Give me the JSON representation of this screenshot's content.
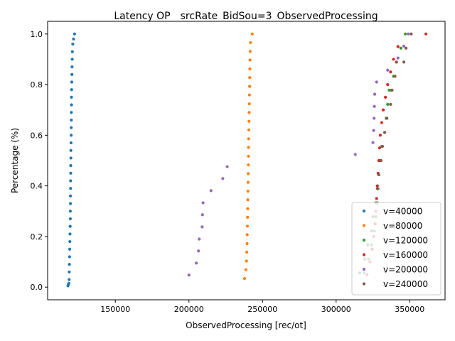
{
  "chart_data": {
    "type": "scatter",
    "title": "Latency OP__srcRate_BidSou=3_ObservedProcessing",
    "xlabel": "ObservedProcessing [rec/ot]",
    "ylabel": "Percentage (%)",
    "xlim": [
      104000,
      374000
    ],
    "ylim": [
      -0.05,
      1.05
    ],
    "xticks": [
      150000,
      200000,
      250000,
      300000,
      350000
    ],
    "xtick_labels": [
      "150000",
      "200000",
      "250000",
      "300000",
      "350000"
    ],
    "yticks": [
      0.0,
      0.2,
      0.4,
      0.6,
      0.8,
      1.0
    ],
    "ytick_labels": [
      "0.0",
      "0.2",
      "0.4",
      "0.6",
      "0.8",
      "1.0"
    ],
    "legend_position": "lower right",
    "grid": false,
    "series": [
      {
        "name": "v=40000",
        "color": "#1f77b4",
        "points": [
          [
            117800,
            0.005
          ],
          [
            118100,
            0.01
          ],
          [
            118400,
            0.015
          ],
          [
            118600,
            0.03
          ],
          [
            118700,
            0.06
          ],
          [
            118800,
            0.09
          ],
          [
            118900,
            0.12
          ],
          [
            119000,
            0.15
          ],
          [
            119100,
            0.18
          ],
          [
            119200,
            0.21
          ],
          [
            119300,
            0.24
          ],
          [
            119400,
            0.27
          ],
          [
            119400,
            0.3
          ],
          [
            119500,
            0.33
          ],
          [
            119500,
            0.36
          ],
          [
            119600,
            0.39
          ],
          [
            119600,
            0.42
          ],
          [
            119700,
            0.45
          ],
          [
            119700,
            0.48
          ],
          [
            119800,
            0.51
          ],
          [
            119800,
            0.54
          ],
          [
            119900,
            0.57
          ],
          [
            120000,
            0.6
          ],
          [
            120000,
            0.63
          ],
          [
            120100,
            0.66
          ],
          [
            120100,
            0.69
          ],
          [
            120200,
            0.72
          ],
          [
            120200,
            0.75
          ],
          [
            120300,
            0.78
          ],
          [
            120400,
            0.81
          ],
          [
            120500,
            0.84
          ],
          [
            120600,
            0.87
          ],
          [
            120700,
            0.9
          ],
          [
            120800,
            0.93
          ],
          [
            121100,
            0.96
          ],
          [
            121600,
            0.98
          ],
          [
            122300,
            1.0
          ]
        ]
      },
      {
        "name": "v=80000",
        "color": "#ff7f0e",
        "points": [
          [
            237800,
            0.034
          ],
          [
            238700,
            0.069
          ],
          [
            239100,
            0.103
          ],
          [
            239300,
            0.138
          ],
          [
            239500,
            0.172
          ],
          [
            239600,
            0.207
          ],
          [
            239700,
            0.241
          ],
          [
            239800,
            0.276
          ],
          [
            239900,
            0.31
          ],
          [
            240000,
            0.345
          ],
          [
            240100,
            0.379
          ],
          [
            240200,
            0.414
          ],
          [
            240300,
            0.448
          ],
          [
            240400,
            0.483
          ],
          [
            240500,
            0.517
          ],
          [
            240500,
            0.552
          ],
          [
            240600,
            0.586
          ],
          [
            240700,
            0.621
          ],
          [
            240800,
            0.655
          ],
          [
            240900,
            0.69
          ],
          [
            241000,
            0.724
          ],
          [
            241100,
            0.759
          ],
          [
            241200,
            0.793
          ],
          [
            241300,
            0.828
          ],
          [
            241400,
            0.862
          ],
          [
            241500,
            0.897
          ],
          [
            241600,
            0.931
          ],
          [
            241800,
            0.966
          ],
          [
            243000,
            1.0
          ]
        ]
      },
      {
        "name": "v=120000",
        "color": "#2ca02c",
        "points": [
          [
            319000,
            0.056
          ],
          [
            322000,
            0.111
          ],
          [
            324000,
            0.167
          ],
          [
            326000,
            0.222
          ],
          [
            327000,
            0.278
          ],
          [
            328000,
            0.333
          ],
          [
            328500,
            0.389
          ],
          [
            329000,
            0.444
          ],
          [
            330000,
            0.5
          ],
          [
            331000,
            0.556
          ],
          [
            333000,
            0.611
          ],
          [
            334000,
            0.667
          ],
          [
            335000,
            0.722
          ],
          [
            336000,
            0.778
          ],
          [
            337500,
            0.778
          ],
          [
            339000,
            0.833
          ],
          [
            341000,
            0.889
          ],
          [
            344000,
            0.944
          ],
          [
            347000,
            1.0
          ]
        ]
      },
      {
        "name": "v=160000",
        "color": "#d62728",
        "points": [
          [
            321000,
            0.05
          ],
          [
            323000,
            0.1
          ],
          [
            324500,
            0.15
          ],
          [
            325500,
            0.2
          ],
          [
            326500,
            0.25
          ],
          [
            327000,
            0.3
          ],
          [
            327500,
            0.35
          ],
          [
            328000,
            0.4
          ],
          [
            328500,
            0.45
          ],
          [
            329000,
            0.5
          ],
          [
            329500,
            0.55
          ],
          [
            330000,
            0.6
          ],
          [
            331000,
            0.65
          ],
          [
            332000,
            0.7
          ],
          [
            333500,
            0.75
          ],
          [
            335000,
            0.8
          ],
          [
            337000,
            0.85
          ],
          [
            339000,
            0.9
          ],
          [
            342000,
            0.95
          ],
          [
            361000,
            1.0
          ]
        ]
      },
      {
        "name": "v=200000",
        "color": "#9467bd",
        "points": [
          [
            200000,
            0.048
          ],
          [
            205000,
            0.095
          ],
          [
            206500,
            0.143
          ],
          [
            207000,
            0.19
          ],
          [
            209000,
            0.238
          ],
          [
            209200,
            0.286
          ],
          [
            209600,
            0.333
          ],
          [
            215000,
            0.381
          ],
          [
            223000,
            0.429
          ],
          [
            226000,
            0.476
          ],
          [
            313000,
            0.524
          ],
          [
            325000,
            0.571
          ],
          [
            325500,
            0.619
          ],
          [
            325800,
            0.667
          ],
          [
            326000,
            0.714
          ],
          [
            326200,
            0.762
          ],
          [
            327500,
            0.81
          ],
          [
            335000,
            0.857
          ],
          [
            342000,
            0.905
          ],
          [
            346000,
            0.952
          ],
          [
            349000,
            1.0
          ]
        ]
      },
      {
        "name": "v=240000",
        "color": "#8c564b",
        "points": [
          [
            316000,
            0.056
          ],
          [
            319500,
            0.111
          ],
          [
            321500,
            0.167
          ],
          [
            324000,
            0.222
          ],
          [
            325000,
            0.278
          ],
          [
            327000,
            0.333
          ],
          [
            328000,
            0.389
          ],
          [
            329000,
            0.444
          ],
          [
            330500,
            0.5
          ],
          [
            331500,
            0.556
          ],
          [
            333000,
            0.611
          ],
          [
            334500,
            0.667
          ],
          [
            337000,
            0.722
          ],
          [
            338000,
            0.778
          ],
          [
            340000,
            0.833
          ],
          [
            341000,
            0.889
          ],
          [
            346000,
            0.889
          ],
          [
            347500,
            0.944
          ],
          [
            351000,
            1.0
          ]
        ]
      }
    ]
  }
}
